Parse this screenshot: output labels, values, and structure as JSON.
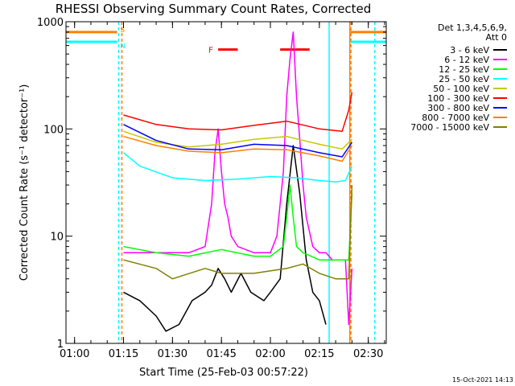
{
  "chart_data": {
    "type": "line",
    "title": "RHESSI Observing Summary Count Rates, Corrected",
    "xlabel": "Start Time (25-Feb-03 00:57:22)",
    "ylabel": "Corrected Count Rate (s⁻¹ detector⁻¹)",
    "yscale": "log",
    "ylim": [
      1,
      1000
    ],
    "xlim": [
      "00:57:22",
      "02:35:30"
    ],
    "ytick_labels": [
      "1",
      "10",
      "100",
      "1000"
    ],
    "xtick_labels": [
      "01:00",
      "01:15",
      "01:30",
      "01:45",
      "02:00",
      "02:15",
      "02:30"
    ],
    "timestamp": "15-Oct-2021 14:13",
    "legend_header": [
      "Det 1,3,4,5,6,9,",
      "Att 0"
    ],
    "legend_position": "right, outside plot",
    "flags": [
      {
        "label": "S",
        "color": "#ff8000",
        "value": 800
      },
      {
        "label": "N",
        "color": "#00ffff",
        "value": 650
      },
      {
        "label": "F",
        "color": "#ff0000",
        "value": 550
      }
    ],
    "flare_intervals": [
      [
        "01:44",
        "01:50"
      ],
      [
        "02:03",
        "02:12"
      ]
    ],
    "vlines": [
      {
        "time": "01:13:30",
        "color": "#00ffff",
        "style": "dashed"
      },
      {
        "time": "01:14:30",
        "color": "#ff8000",
        "style": "dashed"
      },
      {
        "time": "02:18:00",
        "color": "#00ffff",
        "style": "solid"
      },
      {
        "time": "02:24:20",
        "color": "#ff8000",
        "style": "solid"
      },
      {
        "time": "02:24:40",
        "color": "#ff8000",
        "style": "dashed"
      },
      {
        "time": "02:32:00",
        "color": "#00ffff",
        "style": "dashed"
      }
    ],
    "series": [
      {
        "name": "3 - 6 keV",
        "color": "#000000",
        "x": [
          "01:15",
          "01:20",
          "01:25",
          "01:28",
          "01:32",
          "01:36",
          "01:40",
          "01:42",
          "01:44",
          "01:46",
          "01:48",
          "01:51",
          "01:54",
          "01:58",
          "02:00",
          "02:03",
          "02:05",
          "02:07",
          "02:09",
          "02:11",
          "02:13",
          "02:15",
          "02:17"
        ],
        "y": [
          3,
          2.5,
          1.8,
          1.3,
          1.5,
          2.5,
          3,
          3.5,
          5,
          4,
          3,
          4.5,
          3,
          2.5,
          3,
          4,
          20,
          70,
          25,
          6,
          3,
          2.5,
          1.5
        ]
      },
      {
        "name": "6 - 12 keV",
        "color": "#ff00ff",
        "x": [
          "01:15",
          "01:25",
          "01:35",
          "01:40",
          "01:42",
          "01:43",
          "01:44",
          "01:45",
          "01:46",
          "01:47",
          "01:48",
          "01:50",
          "01:55",
          "02:00",
          "02:02",
          "02:04",
          "02:05",
          "02:06",
          "02:07",
          "02:08",
          "02:09",
          "02:10",
          "02:11",
          "02:13",
          "02:15",
          "02:17",
          "02:19",
          "02:23",
          "02:24",
          "02:25"
        ],
        "y": [
          7,
          7,
          7,
          8,
          20,
          60,
          100,
          40,
          20,
          15,
          10,
          8,
          7,
          7,
          10,
          40,
          200,
          450,
          800,
          200,
          80,
          30,
          15,
          8,
          7,
          7,
          6,
          6,
          1.5,
          5
        ]
      },
      {
        "name": "12 - 25 keV",
        "color": "#00ff00",
        "x": [
          "01:15",
          "01:25",
          "01:35",
          "01:45",
          "01:55",
          "02:00",
          "02:04",
          "02:05",
          "02:06",
          "02:07",
          "02:08",
          "02:10",
          "02:15",
          "02:20",
          "02:24",
          "02:25"
        ],
        "y": [
          8,
          7,
          6.5,
          7.5,
          6.5,
          6.5,
          8,
          15,
          30,
          15,
          8,
          7,
          6,
          6,
          6,
          25
        ]
      },
      {
        "name": "25 - 50 keV",
        "color": "#00ffff",
        "x": [
          "01:15",
          "01:20",
          "01:30",
          "01:40",
          "01:50",
          "02:00",
          "02:08",
          "02:15",
          "02:20",
          "02:23",
          "02:25"
        ],
        "y": [
          60,
          45,
          35,
          33,
          34,
          36,
          35,
          33,
          32,
          33,
          45
        ]
      },
      {
        "name": "50 - 100 keV",
        "color": "#c8c800",
        "x": [
          "01:15",
          "01:25",
          "01:35",
          "01:45",
          "01:55",
          "02:05",
          "02:15",
          "02:22",
          "02:25"
        ],
        "y": [
          95,
          75,
          68,
          72,
          80,
          85,
          72,
          65,
          80
        ]
      },
      {
        "name": "100 - 300 keV",
        "color": "#ff0000",
        "x": [
          "01:15",
          "01:25",
          "01:35",
          "01:45",
          "01:55",
          "02:05",
          "02:15",
          "02:22",
          "02:24",
          "02:25"
        ],
        "y": [
          135,
          110,
          100,
          98,
          108,
          118,
          100,
          95,
          150,
          220
        ]
      },
      {
        "name": "300 - 800 keV",
        "color": "#0000ff",
        "x": [
          "01:15",
          "01:25",
          "01:35",
          "01:45",
          "01:55",
          "02:05",
          "02:15",
          "02:22",
          "02:25"
        ],
        "y": [
          110,
          78,
          65,
          64,
          72,
          70,
          60,
          55,
          75
        ]
      },
      {
        "name": "800 - 7000 keV",
        "color": "#ff8000",
        "x": [
          "01:15",
          "01:25",
          "01:35",
          "01:45",
          "01:55",
          "02:05",
          "02:15",
          "02:22",
          "02:25"
        ],
        "y": [
          85,
          70,
          62,
          60,
          65,
          64,
          56,
          50,
          70
        ]
      },
      {
        "name": "7000 - 15000 keV",
        "color": "#808000",
        "x": [
          "01:15",
          "01:25",
          "01:30",
          "01:40",
          "01:45",
          "01:55",
          "02:05",
          "02:10",
          "02:15",
          "02:20",
          "02:24",
          "02:25"
        ],
        "y": [
          6,
          5,
          4,
          5,
          4.5,
          4.5,
          5,
          5.5,
          4.5,
          4,
          4,
          30
        ]
      }
    ]
  }
}
